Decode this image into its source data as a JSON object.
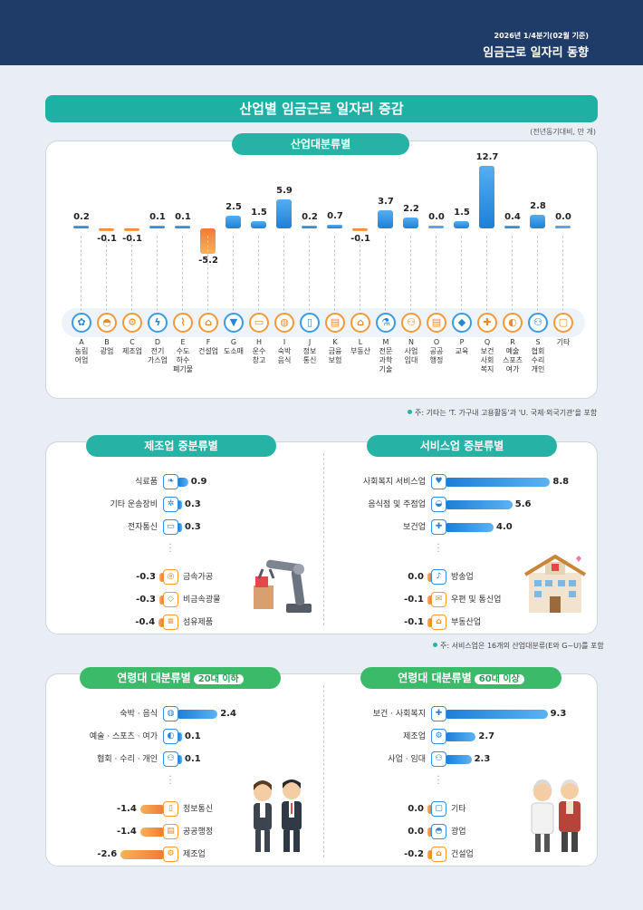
{
  "header": {
    "subtitle": "2026년 1/4분기(02월 기준)",
    "title": "임금근로 일자리 동향"
  },
  "main_title": "산업별 임금근로 일자리 증감",
  "unit": "(전년동기대비, 만 개)",
  "industry_section": {
    "tab": "산업대분류별",
    "note": "주: 기타는 'T. 가구내 고용활동'과 'U. 국제·외국기관'을 포함"
  },
  "chart_data": [
    {
      "type": "bar",
      "title": "산업대분류별",
      "categories": [
        "A 농림어업",
        "B 광업",
        "C 제조업",
        "D 전기가스업",
        "E 수도하수폐기물",
        "F 건설업",
        "G 도소매",
        "H 운수창고",
        "I 숙박음식",
        "J 정보통신",
        "K 금융보험",
        "L 부동산",
        "M 전문과학기술",
        "N 사업임대",
        "O 공공행정",
        "P 교육",
        "Q 보건사회복지",
        "R 예술스포츠여가",
        "S 협회수리개인",
        "기타"
      ],
      "values": [
        0.2,
        -0.1,
        -0.1,
        0.1,
        0.1,
        -5.2,
        2.5,
        1.5,
        5.9,
        0.2,
        0.7,
        -0.1,
        3.7,
        2.2,
        0.0,
        1.5,
        12.7,
        0.4,
        2.8,
        0.0
      ],
      "value_labels": [
        "0.2",
        "-0.1",
        "-0.1",
        "0.1",
        "0.1",
        "-5.2",
        "2.5",
        "1.5",
        "5.9",
        "0.2",
        "0.7",
        "-0.1",
        "3.7",
        "2.2",
        "0.0",
        "1.5",
        "12.7",
        "0.4",
        "2.8",
        "0.0"
      ],
      "codes": [
        "A",
        "B",
        "C",
        "D",
        "E",
        "F",
        "G",
        "H",
        "I",
        "J",
        "K",
        "L",
        "M",
        "N",
        "O",
        "P",
        "Q",
        "R",
        "S",
        ""
      ],
      "labels": [
        [
          "농림",
          "어업"
        ],
        [
          "광업"
        ],
        [
          "제조업"
        ],
        [
          "전기",
          "가스업"
        ],
        [
          "수도",
          "하수",
          "폐기물"
        ],
        [
          "건설업"
        ],
        [
          "도소매"
        ],
        [
          "운수",
          "창고"
        ],
        [
          "숙박",
          "음식"
        ],
        [
          "정보",
          "통신"
        ],
        [
          "금융",
          "보험"
        ],
        [
          "부동산"
        ],
        [
          "전문",
          "과학",
          "기술"
        ],
        [
          "사업",
          "임대"
        ],
        [
          "공공",
          "행정"
        ],
        [
          "교육"
        ],
        [
          "보건",
          "사회",
          "복지"
        ],
        [
          "예술",
          "스포츠",
          "여가"
        ],
        [
          "협회",
          "수리",
          "개인"
        ],
        [
          "기타"
        ]
      ],
      "icons": [
        "wheat-icon",
        "helmet-icon",
        "gear-icon",
        "lightning-icon",
        "faucet-icon",
        "construction-icon",
        "basket-icon",
        "truck-icon",
        "dish-icon",
        "phone-icon",
        "bank-icon",
        "house-icon",
        "flask-icon",
        "people-icon",
        "document-icon",
        "mortarboard-icon",
        "medical-bag-icon",
        "palette-icon",
        "group-icon",
        "etc-icon"
      ],
      "colors": {
        "positive": "#1e7fd6",
        "negative": "#f07a3a"
      }
    },
    {
      "type": "bar",
      "title": "제조업 중분류별",
      "categories": [
        "식료품",
        "기타 운송장비",
        "전자통신",
        "금속가공",
        "비금속광물",
        "섬유제품"
      ],
      "values": [
        0.9,
        0.3,
        0.3,
        -0.3,
        -0.3,
        -0.4
      ],
      "value_labels": [
        "0.9",
        "0.3",
        "0.3",
        "-0.3",
        "-0.3",
        "-0.4"
      ]
    },
    {
      "type": "bar",
      "title": "서비스업 중분류별",
      "categories": [
        "사회복지 서비스업",
        "음식점 및 주점업",
        "보건업",
        "방송업",
        "우편 및 통신업",
        "부동산업"
      ],
      "values": [
        8.8,
        5.6,
        4.0,
        0.0,
        -0.1,
        -0.1
      ],
      "value_labels": [
        "8.8",
        "5.6",
        "4.0",
        "0.0",
        "-0.1",
        "-0.1"
      ]
    },
    {
      "type": "bar",
      "title": "연령대 대분류별 20대 이하",
      "categories": [
        "숙박 · 음식",
        "예술 · 스포츠 · 여가",
        "협회 · 수리 · 개인",
        "정보통신",
        "공공행정",
        "제조업"
      ],
      "values": [
        2.4,
        0.1,
        0.1,
        -1.4,
        -1.4,
        -2.6
      ],
      "value_labels": [
        "2.4",
        "0.1",
        "0.1",
        "-1.4",
        "-1.4",
        "-2.6"
      ]
    },
    {
      "type": "bar",
      "title": "연령대 대분류별 60대 이상",
      "categories": [
        "보건 · 사회복지",
        "제조업",
        "사업 · 임대",
        "기타",
        "광업",
        "건설업"
      ],
      "values": [
        9.3,
        2.7,
        2.3,
        0.0,
        0.0,
        -0.2
      ],
      "value_labels": [
        "9.3",
        "2.7",
        "2.3",
        "0.0",
        "0.0",
        "-0.2"
      ]
    }
  ],
  "manufacturing": {
    "tab": "제조업 중분류별"
  },
  "services": {
    "tab": "서비스업 중분류별",
    "note": "주: 서비스업은 16개의 산업대분류(E와 G~U)를 포함"
  },
  "age_young": {
    "tab": "연령대 대분류별",
    "highlight": "20대 이하"
  },
  "age_old": {
    "tab": "연령대 대분류별",
    "highlight": "60대 이상"
  }
}
